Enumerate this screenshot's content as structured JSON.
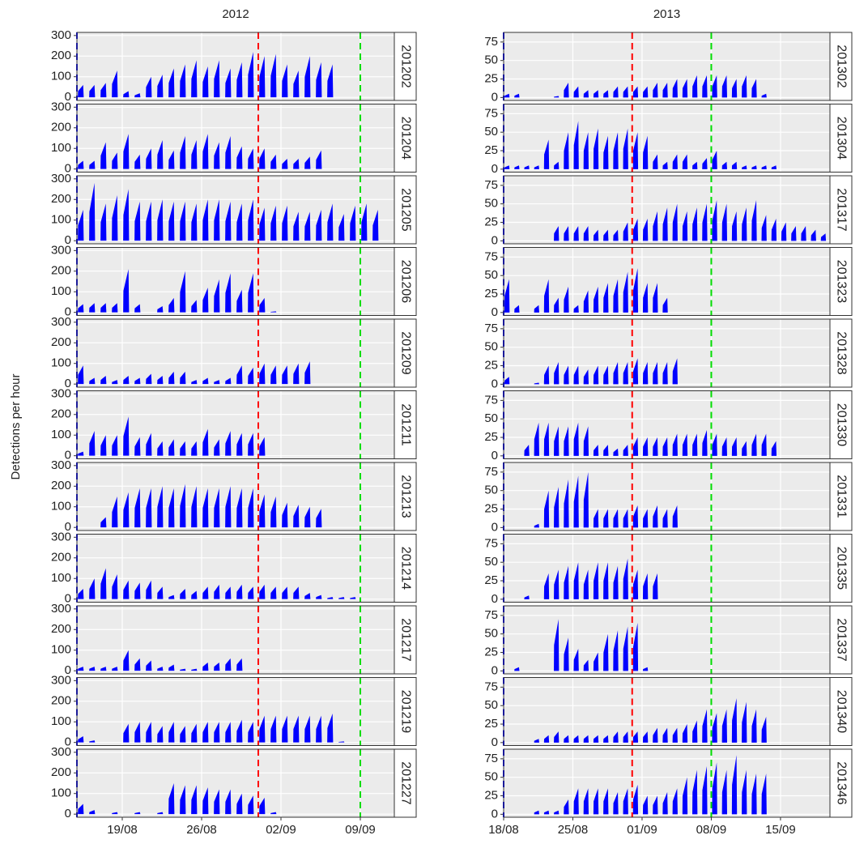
{
  "chart_data": {
    "type": "bar",
    "y_label": "Detections per hour",
    "columns": [
      {
        "title": "2012",
        "xlim": [
          "15/08",
          "12/09"
        ],
        "xticks": [
          "19/08",
          "26/08",
          "02/09",
          "09/09"
        ],
        "ylim": [
          -15,
          315
        ],
        "yticks": [
          0,
          100,
          200,
          300
        ],
        "color": "#0000ff",
        "x": [
          "15/08",
          "16/08",
          "17/08",
          "18/08",
          "19/08",
          "20/08",
          "21/08",
          "22/08",
          "23/08",
          "24/08",
          "25/08",
          "26/08",
          "27/08",
          "28/08",
          "29/08",
          "30/08",
          "31/08",
          "01/09",
          "02/09",
          "03/09",
          "04/09",
          "05/09",
          "06/09",
          "07/09",
          "08/09",
          "09/09",
          "10/09",
          "11/09",
          "12/09"
        ],
        "vlines": [
          {
            "x": "15/08",
            "color": "#0000ff"
          },
          {
            "x": "31/08",
            "color": "#ff0000"
          },
          {
            "x": "09/09",
            "color": "#00dd00"
          }
        ],
        "panels": [
          {
            "name": "201202",
            "values": [
              60,
              60,
              70,
              130,
              30,
              20,
              100,
              110,
              140,
              160,
              180,
              150,
              180,
              140,
              170,
              220,
              200,
              210,
              160,
              130,
              200,
              170,
              160,
              null,
              null,
              null,
              null,
              null,
              null
            ]
          },
          {
            "name": "201204",
            "values": [
              40,
              40,
              130,
              80,
              170,
              70,
              100,
              140,
              90,
              160,
              140,
              170,
              130,
              160,
              110,
              100,
              100,
              70,
              50,
              50,
              60,
              90,
              null,
              null,
              null,
              null,
              null,
              null,
              null
            ]
          },
          {
            "name": "201205",
            "values": [
              150,
              280,
              180,
              220,
              250,
              190,
              190,
              200,
              190,
              190,
              180,
              200,
              200,
              190,
              180,
              200,
              160,
              170,
              170,
              140,
              140,
              150,
              180,
              130,
              170,
              180,
              150,
              null,
              null
            ]
          },
          {
            "name": "201206",
            "values": [
              40,
              45,
              45,
              45,
              210,
              40,
              null,
              30,
              70,
              200,
              60,
              120,
              160,
              190,
              110,
              190,
              70,
              5,
              null,
              null,
              null,
              null,
              null,
              null,
              null,
              null,
              null,
              null,
              null
            ]
          },
          {
            "name": "201209",
            "values": [
              90,
              30,
              40,
              20,
              40,
              30,
              50,
              40,
              60,
              60,
              20,
              30,
              20,
              30,
              90,
              80,
              100,
              90,
              90,
              100,
              110,
              null,
              null,
              null,
              null,
              null,
              null,
              null,
              null
            ]
          },
          {
            "name": "201211",
            "values": [
              20,
              120,
              100,
              100,
              190,
              90,
              110,
              70,
              80,
              70,
              70,
              130,
              80,
              120,
              110,
              110,
              90,
              null,
              null,
              null,
              null,
              null,
              null,
              null,
              null,
              null,
              null,
              null,
              null
            ]
          },
          {
            "name": "201213",
            "values": [
              null,
              null,
              50,
              150,
              170,
              190,
              190,
              200,
              190,
              210,
              200,
              190,
              190,
              200,
              190,
              190,
              160,
              150,
              120,
              110,
              100,
              90,
              null,
              null,
              null,
              null,
              null,
              null,
              null
            ]
          },
          {
            "name": "201214",
            "values": [
              50,
              100,
              150,
              120,
              90,
              80,
              90,
              60,
              20,
              50,
              40,
              60,
              70,
              60,
              70,
              60,
              70,
              60,
              60,
              60,
              30,
              20,
              10,
              10,
              10,
              null,
              null,
              null,
              null
            ]
          },
          {
            "name": "201217",
            "values": [
              20,
              20,
              20,
              20,
              100,
              60,
              50,
              20,
              30,
              10,
              10,
              40,
              40,
              60,
              60,
              null,
              null,
              null,
              null,
              null,
              null,
              null,
              null,
              null,
              null,
              null,
              null,
              null,
              null
            ]
          },
          {
            "name": "201219",
            "values": [
              30,
              10,
              null,
              null,
              90,
              100,
              100,
              80,
              100,
              80,
              90,
              100,
              100,
              100,
              110,
              100,
              130,
              130,
              130,
              130,
              130,
              130,
              140,
              5,
              null,
              null,
              null,
              null,
              null
            ]
          },
          {
            "name": "201227",
            "values": [
              50,
              20,
              null,
              10,
              null,
              10,
              null,
              10,
              150,
              140,
              140,
              130,
              120,
              120,
              100,
              90,
              80,
              10,
              null,
              null,
              null,
              null,
              null,
              null,
              null,
              null,
              null,
              null,
              null
            ]
          }
        ]
      },
      {
        "title": "2013",
        "xlim": [
          "18/08",
          "20/09"
        ],
        "xticks": [
          "18/08",
          "25/08",
          "01/09",
          "08/09",
          "15/09"
        ],
        "ylim": [
          -4,
          88
        ],
        "yticks": [
          0,
          25,
          50,
          75
        ],
        "color": "#0000ff",
        "x": [
          "18/08",
          "19/08",
          "20/08",
          "21/08",
          "22/08",
          "23/08",
          "24/08",
          "25/08",
          "26/08",
          "27/08",
          "28/08",
          "29/08",
          "30/08",
          "31/08",
          "01/09",
          "02/09",
          "03/09",
          "04/09",
          "05/09",
          "06/09",
          "07/09",
          "08/09",
          "09/09",
          "10/09",
          "11/09",
          "12/09",
          "13/09",
          "14/09",
          "15/09",
          "16/09",
          "17/09",
          "18/09",
          "19/09",
          "20/09"
        ],
        "vlines": [
          {
            "x": "18/08",
            "color": "#0000ff"
          },
          {
            "x": "31/08",
            "color": "#ff0000"
          },
          {
            "x": "08/09",
            "color": "#00dd00"
          }
        ],
        "panels": [
          {
            "name": "201302",
            "values": [
              5,
              5,
              null,
              null,
              null,
              2,
              20,
              15,
              10,
              10,
              10,
              15,
              15,
              15,
              15,
              20,
              20,
              25,
              25,
              30,
              30,
              30,
              30,
              25,
              30,
              25,
              5,
              null,
              null,
              null,
              null,
              null,
              null,
              null
            ]
          },
          {
            "name": "201304",
            "values": [
              5,
              5,
              5,
              5,
              40,
              10,
              50,
              65,
              50,
              55,
              45,
              50,
              55,
              50,
              45,
              20,
              10,
              20,
              20,
              10,
              15,
              25,
              10,
              10,
              5,
              5,
              5,
              5,
              null,
              null,
              null,
              null,
              null,
              null
            ]
          },
          {
            "name": "201317",
            "values": [
              null,
              null,
              null,
              null,
              null,
              20,
              20,
              20,
              20,
              15,
              15,
              15,
              25,
              30,
              30,
              40,
              45,
              50,
              40,
              45,
              50,
              55,
              50,
              40,
              45,
              55,
              35,
              30,
              25,
              20,
              20,
              15,
              10,
              null
            ]
          },
          {
            "name": "201323",
            "values": [
              45,
              10,
              null,
              10,
              45,
              20,
              35,
              10,
              30,
              35,
              40,
              45,
              55,
              60,
              40,
              40,
              20,
              null,
              null,
              null,
              null,
              null,
              null,
              null,
              null,
              null,
              null,
              null,
              null,
              null,
              null,
              null,
              null,
              null
            ]
          },
          {
            "name": "201328",
            "values": [
              10,
              null,
              null,
              2,
              25,
              30,
              25,
              25,
              20,
              25,
              25,
              30,
              30,
              35,
              30,
              30,
              30,
              35,
              null,
              null,
              null,
              null,
              null,
              null,
              null,
              null,
              null,
              null,
              null,
              null,
              null,
              null,
              null,
              null
            ]
          },
          {
            "name": "201330",
            "values": [
              null,
              null,
              15,
              45,
              45,
              40,
              40,
              45,
              40,
              15,
              15,
              10,
              15,
              25,
              25,
              25,
              25,
              30,
              30,
              30,
              35,
              30,
              25,
              25,
              20,
              30,
              30,
              20,
              null,
              null,
              null,
              null,
              null,
              null
            ]
          },
          {
            "name": "201331",
            "values": [
              null,
              null,
              null,
              5,
              50,
              55,
              65,
              70,
              75,
              25,
              25,
              25,
              25,
              30,
              25,
              30,
              25,
              30,
              null,
              null,
              null,
              null,
              null,
              null,
              null,
              null,
              null,
              null,
              null,
              null,
              null,
              null,
              null,
              null
            ]
          },
          {
            "name": "201335",
            "values": [
              null,
              null,
              5,
              null,
              35,
              40,
              45,
              50,
              40,
              50,
              50,
              45,
              55,
              40,
              35,
              35,
              null,
              null,
              null,
              null,
              null,
              null,
              null,
              null,
              null,
              null,
              null,
              null,
              null,
              null,
              null,
              null,
              null,
              null
            ]
          },
          {
            "name": "201337",
            "values": [
              null,
              5,
              null,
              null,
              null,
              70,
              45,
              30,
              15,
              25,
              50,
              55,
              60,
              65,
              5,
              null,
              null,
              null,
              null,
              null,
              null,
              null,
              null,
              null,
              null,
              null,
              null,
              null,
              null,
              null,
              null,
              null,
              null,
              null
            ]
          },
          {
            "name": "201340",
            "values": [
              null,
              null,
              null,
              5,
              10,
              15,
              10,
              10,
              10,
              10,
              10,
              15,
              15,
              15,
              15,
              20,
              20,
              20,
              25,
              30,
              45,
              40,
              45,
              60,
              55,
              45,
              35,
              null,
              null,
              null,
              null,
              null,
              null,
              null
            ]
          },
          {
            "name": "201346",
            "values": [
              null,
              null,
              null,
              5,
              5,
              5,
              20,
              35,
              35,
              35,
              35,
              30,
              35,
              40,
              25,
              25,
              30,
              35,
              50,
              60,
              65,
              70,
              60,
              80,
              60,
              55,
              55,
              null,
              null,
              null,
              null,
              null,
              null,
              null
            ]
          }
        ]
      }
    ]
  }
}
